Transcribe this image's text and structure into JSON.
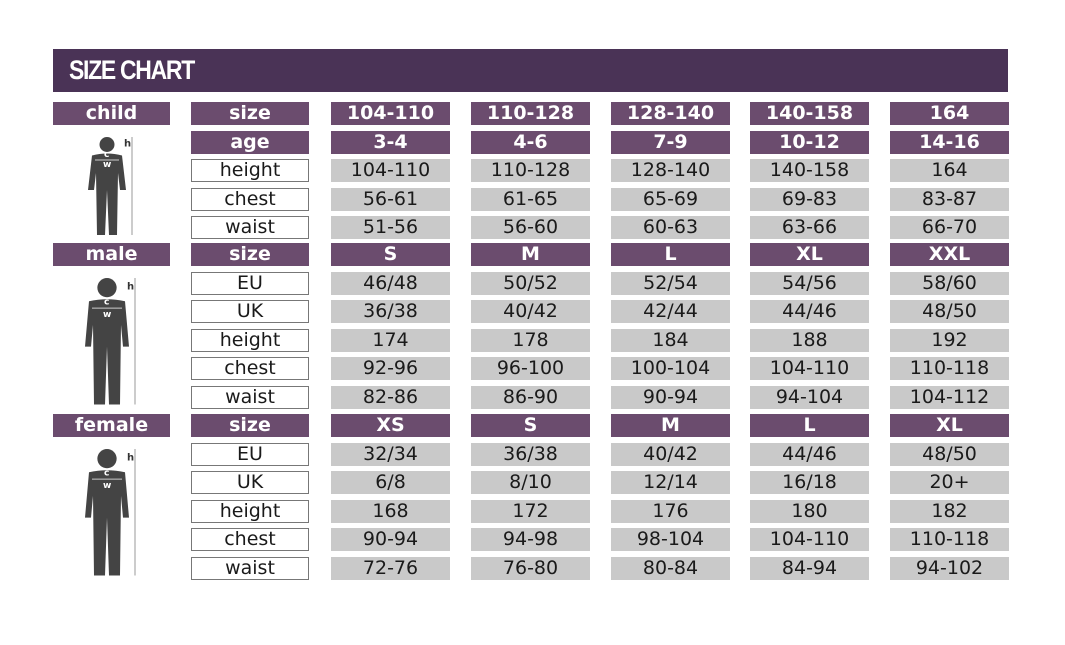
{
  "title": "SIZE CHART",
  "colors": {
    "header": "#4a3356",
    "label": "#6b4c6e",
    "value": "#c9c9c9"
  },
  "sections": [
    {
      "name": "child",
      "icon": "child-silhouette-icon",
      "rows": [
        {
          "key": "size",
          "style": "header",
          "values": [
            "104-110",
            "110-128",
            "128-140",
            "140-158",
            "164"
          ]
        },
        {
          "key": "age",
          "style": "header",
          "values": [
            "3-4",
            "4-6",
            "7-9",
            "10-12",
            "14-16"
          ]
        },
        {
          "key": "height",
          "values": [
            "104-110",
            "110-128",
            "128-140",
            "140-158",
            "164"
          ]
        },
        {
          "key": "chest",
          "values": [
            "56-61",
            "61-65",
            "65-69",
            "69-83",
            "83-87"
          ]
        },
        {
          "key": "waist",
          "values": [
            "51-56",
            "56-60",
            "60-63",
            "63-66",
            "66-70"
          ]
        }
      ]
    },
    {
      "name": "male",
      "icon": "male-silhouette-icon",
      "rows": [
        {
          "key": "size",
          "style": "header",
          "values": [
            "S",
            "M",
            "L",
            "XL",
            "XXL"
          ]
        },
        {
          "key": "EU",
          "values": [
            "46/48",
            "50/52",
            "52/54",
            "54/56",
            "58/60"
          ]
        },
        {
          "key": "UK",
          "values": [
            "36/38",
            "40/42",
            "42/44",
            "44/46",
            "48/50"
          ]
        },
        {
          "key": "height",
          "values": [
            "174",
            "178",
            "184",
            "188",
            "192"
          ]
        },
        {
          "key": "chest",
          "values": [
            "92-96",
            "96-100",
            "100-104",
            "104-110",
            "110-118"
          ]
        },
        {
          "key": "waist",
          "values": [
            "82-86",
            "86-90",
            "90-94",
            "94-104",
            "104-112"
          ]
        }
      ]
    },
    {
      "name": "female",
      "icon": "female-silhouette-icon",
      "rows": [
        {
          "key": "size",
          "style": "header",
          "values": [
            "XS",
            "S",
            "M",
            "L",
            "XL"
          ]
        },
        {
          "key": "EU",
          "values": [
            "32/34",
            "36/38",
            "40/42",
            "44/46",
            "48/50"
          ]
        },
        {
          "key": "UK",
          "values": [
            "6/8",
            "8/10",
            "12/14",
            "16/18",
            "20+"
          ]
        },
        {
          "key": "height",
          "values": [
            "168",
            "172",
            "176",
            "180",
            "182"
          ]
        },
        {
          "key": "chest",
          "values": [
            "90-94",
            "94-98",
            "98-104",
            "104-110",
            "110-118"
          ]
        },
        {
          "key": "waist",
          "values": [
            "72-76",
            "76-80",
            "80-84",
            "84-94",
            "94-102"
          ]
        }
      ]
    }
  ],
  "figure_labels": {
    "h": "h",
    "c": "c",
    "w": "w"
  }
}
